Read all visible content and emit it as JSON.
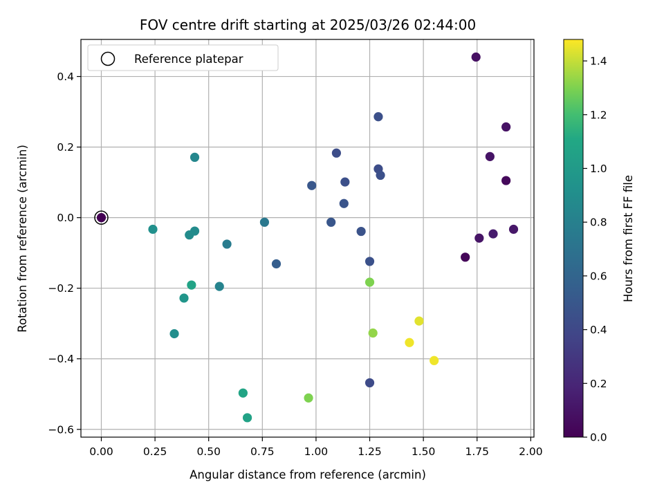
{
  "chart_data": {
    "type": "scatter",
    "title": "FOV centre drift starting at 2025/03/26 02:44:00",
    "xlabel": "Angular distance from reference (arcmin)",
    "ylabel": "Rotation from reference (arcmin)",
    "xlim": [
      -0.095,
      2.015
    ],
    "ylim": [
      -0.622,
      0.505
    ],
    "x_ticks": [
      0.0,
      0.25,
      0.5,
      0.75,
      1.0,
      1.25,
      1.5,
      1.75,
      2.0
    ],
    "x_tick_labels": [
      "0.00",
      "0.25",
      "0.50",
      "0.75",
      "1.00",
      "1.25",
      "1.50",
      "1.75",
      "2.00"
    ],
    "y_ticks": [
      -0.6,
      -0.4,
      -0.2,
      0.0,
      0.2,
      0.4
    ],
    "y_tick_labels": [
      "−0.6",
      "−0.4",
      "−0.2",
      "0.0",
      "0.2",
      "0.4"
    ],
    "grid": true,
    "legend": {
      "position": "top-left",
      "entries": [
        "Reference platepar"
      ]
    },
    "colorbar": {
      "label": "Hours from first FF file",
      "range": [
        0.0,
        1.48
      ],
      "ticks": [
        0.0,
        0.2,
        0.4,
        0.6,
        0.8,
        1.0,
        1.2,
        1.4
      ],
      "tick_labels": [
        "0.0",
        "0.2",
        "0.4",
        "0.6",
        "0.8",
        "1.0",
        "1.2",
        "1.4"
      ],
      "colormap": "viridis"
    },
    "reference_point": {
      "x": 0.0,
      "y": 0.0
    },
    "points": [
      {
        "x": 0.0,
        "y": 0.0,
        "c": 0.0
      },
      {
        "x": 1.745,
        "y": 0.455,
        "c": 0.08
      },
      {
        "x": 1.885,
        "y": 0.257,
        "c": 0.09
      },
      {
        "x": 1.81,
        "y": 0.173,
        "c": 0.1
      },
      {
        "x": 1.885,
        "y": 0.105,
        "c": 0.04
      },
      {
        "x": 1.92,
        "y": -0.033,
        "c": 0.12
      },
      {
        "x": 1.825,
        "y": -0.046,
        "c": 0.14
      },
      {
        "x": 1.76,
        "y": -0.058,
        "c": 0.1
      },
      {
        "x": 1.695,
        "y": -0.112,
        "c": 0.03
      },
      {
        "x": 1.29,
        "y": 0.286,
        "c": 0.45
      },
      {
        "x": 1.095,
        "y": 0.183,
        "c": 0.43
      },
      {
        "x": 1.29,
        "y": 0.138,
        "c": 0.43
      },
      {
        "x": 1.3,
        "y": 0.12,
        "c": 0.45
      },
      {
        "x": 1.135,
        "y": 0.101,
        "c": 0.45
      },
      {
        "x": 0.98,
        "y": 0.091,
        "c": 0.5
      },
      {
        "x": 1.13,
        "y": 0.04,
        "c": 0.48
      },
      {
        "x": 1.07,
        "y": -0.013,
        "c": 0.49
      },
      {
        "x": 1.21,
        "y": -0.039,
        "c": 0.47
      },
      {
        "x": 1.25,
        "y": -0.124,
        "c": 0.46
      },
      {
        "x": 0.815,
        "y": -0.131,
        "c": 0.55
      },
      {
        "x": 1.25,
        "y": -0.468,
        "c": 0.42
      },
      {
        "x": 0.76,
        "y": -0.013,
        "c": 0.74
      },
      {
        "x": 0.585,
        "y": -0.075,
        "c": 0.77
      },
      {
        "x": 0.435,
        "y": 0.171,
        "c": 0.85
      },
      {
        "x": 0.24,
        "y": -0.033,
        "c": 0.92
      },
      {
        "x": 0.435,
        "y": -0.038,
        "c": 0.88
      },
      {
        "x": 0.41,
        "y": -0.049,
        "c": 0.89
      },
      {
        "x": 0.55,
        "y": -0.195,
        "c": 0.82
      },
      {
        "x": 0.42,
        "y": -0.191,
        "c": 1.07
      },
      {
        "x": 0.385,
        "y": -0.228,
        "c": 0.96
      },
      {
        "x": 0.34,
        "y": -0.329,
        "c": 0.9
      },
      {
        "x": 0.66,
        "y": -0.497,
        "c": 1.08
      },
      {
        "x": 0.68,
        "y": -0.567,
        "c": 1.06
      },
      {
        "x": 0.965,
        "y": -0.511,
        "c": 1.3
      },
      {
        "x": 1.25,
        "y": -0.183,
        "c": 1.3
      },
      {
        "x": 1.265,
        "y": -0.327,
        "c": 1.33
      },
      {
        "x": 1.48,
        "y": -0.293,
        "c": 1.44
      },
      {
        "x": 1.435,
        "y": -0.354,
        "c": 1.46
      },
      {
        "x": 1.55,
        "y": -0.405,
        "c": 1.46
      }
    ]
  }
}
